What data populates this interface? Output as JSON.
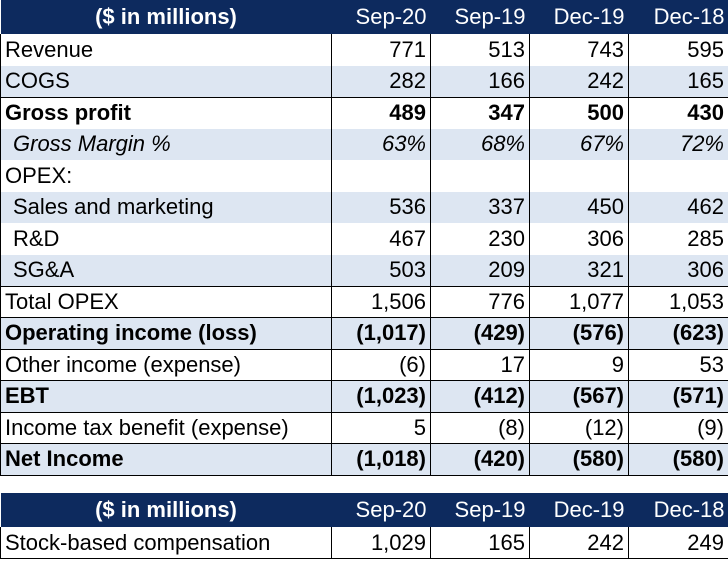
{
  "table1": {
    "header": {
      "label": "($ in millions)",
      "periods": [
        "Sep-20",
        "Sep-19",
        "Dec-19",
        "Dec-18"
      ]
    },
    "rows": [
      {
        "label": "Revenue",
        "values": [
          "771",
          "513",
          "743",
          "595"
        ]
      },
      {
        "label": "COGS",
        "values": [
          "282",
          "166",
          "242",
          "165"
        ]
      },
      {
        "label": "Gross profit",
        "values": [
          "489",
          "347",
          "500",
          "430"
        ]
      },
      {
        "label": "Gross Margin %",
        "values": [
          "63%",
          "68%",
          "67%",
          "72%"
        ]
      },
      {
        "label": "OPEX:",
        "values": [
          "",
          "",
          "",
          ""
        ]
      },
      {
        "label": "Sales and marketing",
        "values": [
          "536",
          "337",
          "450",
          "462"
        ]
      },
      {
        "label": "R&D",
        "values": [
          "467",
          "230",
          "306",
          "285"
        ]
      },
      {
        "label": "SG&A",
        "values": [
          "503",
          "209",
          "321",
          "306"
        ]
      },
      {
        "label": "Total OPEX",
        "values": [
          "1,506",
          "776",
          "1,077",
          "1,053"
        ]
      },
      {
        "label": "Operating income (loss)",
        "values": [
          "(1,017)",
          "(429)",
          "(576)",
          "(623)"
        ]
      },
      {
        "label": "Other income (expense)",
        "values": [
          "(6)",
          "17",
          "9",
          "53"
        ]
      },
      {
        "label": "EBT",
        "values": [
          "(1,023)",
          "(412)",
          "(567)",
          "(571)"
        ]
      },
      {
        "label": "Income tax benefit (expense)",
        "values": [
          "5",
          "(8)",
          "(12)",
          "(9)"
        ]
      },
      {
        "label": "Net Income",
        "values": [
          "(1,018)",
          "(420)",
          "(580)",
          "(580)"
        ]
      }
    ]
  },
  "table2": {
    "header": {
      "label": "($ in millions)",
      "periods": [
        "Sep-20",
        "Sep-19",
        "Dec-19",
        "Dec-18"
      ]
    },
    "rows": [
      {
        "label": "Stock-based compensation",
        "values": [
          "1,029",
          "165",
          "242",
          "249"
        ]
      }
    ]
  },
  "colors": {
    "header_bg": "#0d2a5e",
    "header_text": "#ffffff",
    "band": "#dde6f2"
  }
}
